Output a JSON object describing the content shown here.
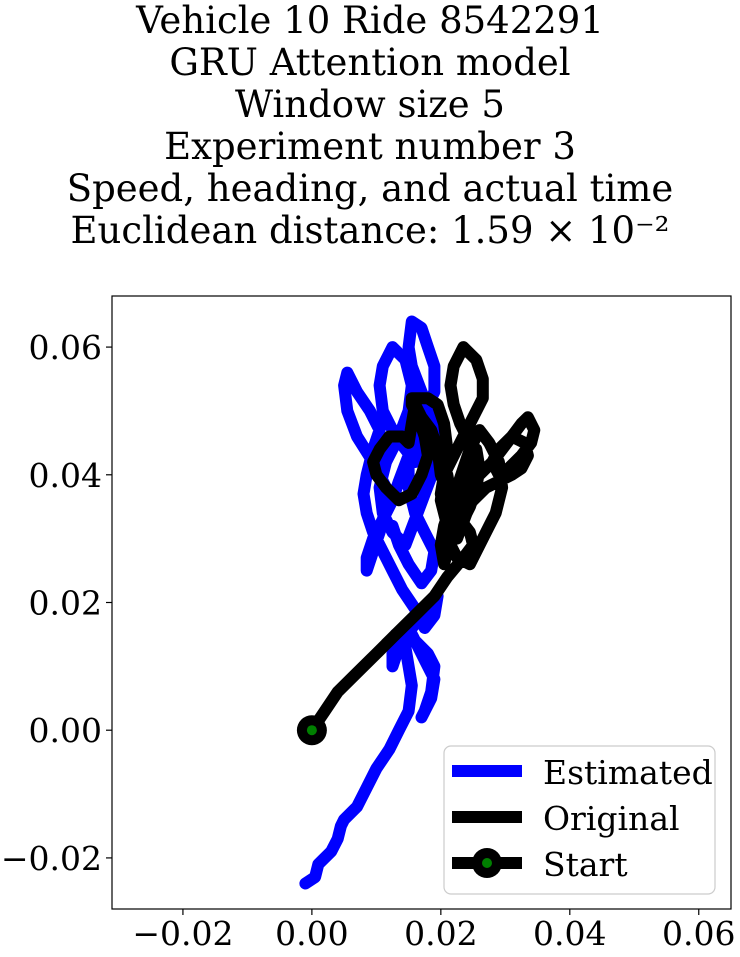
{
  "title_lines": [
    "Vehicle 10 Ride 8542291",
    "GRU Attention model",
    "Window size 5",
    "Experiment number 3",
    "Speed, heading, and actual time",
    "Euclidean distance: 1.59 × 10⁻²"
  ],
  "chart_data": {
    "type": "line",
    "title": "Vehicle 10 Ride 8542291 / GRU Attention model / Window size 5 / Experiment number 3 / Speed, heading, and actual time / Euclidean distance: 1.59 × 10⁻²",
    "xlabel": "",
    "ylabel": "",
    "xlim": [
      -0.031,
      0.065
    ],
    "ylim": [
      -0.028,
      0.068
    ],
    "xticks": [
      -0.02,
      0.0,
      0.02,
      0.04,
      0.06
    ],
    "yticks": [
      -0.02,
      0.0,
      0.02,
      0.04,
      0.06
    ],
    "xtick_labels": [
      "−0.02",
      "0.00",
      "0.02",
      "0.04",
      "0.06"
    ],
    "ytick_labels": [
      "−0.02",
      "0.00",
      "0.02",
      "0.04",
      "0.06"
    ],
    "grid": false,
    "legend_position": "bottom-right",
    "series": [
      {
        "name": "Estimated",
        "color": "#0000ff",
        "x": [
          -0.001,
          0.0005,
          0.001,
          0.003,
          0.004,
          0.0045,
          0.005,
          0.007,
          0.0085,
          0.01,
          0.012,
          0.0135,
          0.015,
          0.0155,
          0.015,
          0.0145,
          0.015,
          0.016,
          0.018,
          0.019,
          0.0185,
          0.0175,
          0.017,
          0.0185,
          0.019,
          0.0175,
          0.016,
          0.0145,
          0.013,
          0.0125,
          0.0125,
          0.0135,
          0.0155,
          0.018,
          0.0195,
          0.019,
          0.0175,
          0.016,
          0.014,
          0.0125,
          0.011,
          0.0095,
          0.0085,
          0.008,
          0.0085,
          0.0095,
          0.0105,
          0.009,
          0.007,
          0.0055,
          0.005,
          0.0055,
          0.007,
          0.0095,
          0.0115,
          0.0115,
          0.0105,
          0.0095,
          0.0085,
          0.0085,
          0.0095,
          0.011,
          0.0125,
          0.0135,
          0.015,
          0.0165,
          0.0175,
          0.019,
          0.019,
          0.018,
          0.017,
          0.0155,
          0.015,
          0.0155,
          0.017,
          0.0185,
          0.0185,
          0.016,
          0.013,
          0.011,
          0.0105,
          0.011,
          0.0125,
          0.0145,
          0.0155,
          0.015,
          0.0135,
          0.0115,
          0.0105,
          0.011,
          0.0125,
          0.0145,
          0.016,
          0.0175,
          0.019,
          0.0195,
          0.0185,
          0.0165,
          0.015,
          0.015,
          0.016,
          0.0175,
          0.019,
          0.0185,
          0.017,
          0.015,
          0.0135,
          0.0125
        ],
        "y": [
          -0.024,
          -0.023,
          -0.021,
          -0.019,
          -0.017,
          -0.015,
          -0.014,
          -0.012,
          -0.009,
          -0.006,
          -0.003,
          0.0,
          0.003,
          0.007,
          0.01,
          0.013,
          0.016,
          0.014,
          0.012,
          0.01,
          0.006,
          0.003,
          0.002,
          0.005,
          0.008,
          0.011,
          0.014,
          0.016,
          0.015,
          0.012,
          0.01,
          0.013,
          0.016,
          0.019,
          0.021,
          0.018,
          0.016,
          0.019,
          0.022,
          0.025,
          0.028,
          0.031,
          0.034,
          0.037,
          0.04,
          0.044,
          0.047,
          0.05,
          0.053,
          0.056,
          0.054,
          0.05,
          0.046,
          0.042,
          0.038,
          0.035,
          0.031,
          0.028,
          0.025,
          0.027,
          0.03,
          0.033,
          0.036,
          0.039,
          0.043,
          0.047,
          0.05,
          0.053,
          0.057,
          0.06,
          0.063,
          0.064,
          0.06,
          0.057,
          0.053,
          0.049,
          0.045,
          0.042,
          0.046,
          0.05,
          0.054,
          0.057,
          0.06,
          0.058,
          0.054,
          0.05,
          0.046,
          0.042,
          0.038,
          0.034,
          0.031,
          0.029,
          0.033,
          0.037,
          0.041,
          0.045,
          0.049,
          0.046,
          0.042,
          0.038,
          0.034,
          0.031,
          0.028,
          0.025,
          0.023,
          0.026,
          0.029,
          0.032
        ]
      },
      {
        "name": "Original",
        "color": "#000000",
        "x": [
          0.0,
          0.002,
          0.004,
          0.007,
          0.01,
          0.013,
          0.016,
          0.019,
          0.021,
          0.0235,
          0.025,
          0.0245,
          0.023,
          0.0215,
          0.02,
          0.0195,
          0.0185,
          0.017,
          0.016,
          0.0155,
          0.015,
          0.014,
          0.012,
          0.0105,
          0.0095,
          0.01,
          0.0115,
          0.0135,
          0.0155,
          0.017,
          0.018,
          0.0175,
          0.0165,
          0.0155,
          0.0155,
          0.0165,
          0.018,
          0.0195,
          0.0205,
          0.021,
          0.0205,
          0.02,
          0.021,
          0.0225,
          0.024,
          0.025,
          0.0255,
          0.0245,
          0.023,
          0.022,
          0.0215,
          0.022,
          0.0235,
          0.0255,
          0.0265,
          0.0265,
          0.025,
          0.0235,
          0.022,
          0.0205,
          0.02,
          0.0205,
          0.022,
          0.024,
          0.026,
          0.028,
          0.0295,
          0.031,
          0.0325,
          0.0335,
          0.0345,
          0.034,
          0.0325,
          0.0305,
          0.029,
          0.028,
          0.029,
          0.031,
          0.033,
          0.0335,
          0.0325,
          0.031,
          0.029,
          0.027,
          0.025,
          0.0235,
          0.022,
          0.0215,
          0.0225,
          0.0245,
          0.0265,
          0.0285,
          0.0295,
          0.029,
          0.0275,
          0.026,
          0.0245,
          0.0235,
          0.0225,
          0.0215,
          0.0205,
          0.02,
          0.0205,
          0.0215,
          0.0225,
          0.0235,
          0.0245,
          0.0255,
          0.026,
          0.0255,
          0.0245,
          0.0235,
          0.0225,
          0.0215,
          0.021
        ],
        "y": [
          0.0,
          0.003,
          0.006,
          0.009,
          0.012,
          0.015,
          0.018,
          0.021,
          0.024,
          0.027,
          0.029,
          0.031,
          0.033,
          0.036,
          0.04,
          0.044,
          0.047,
          0.049,
          0.051,
          0.048,
          0.045,
          0.046,
          0.046,
          0.044,
          0.042,
          0.04,
          0.038,
          0.036,
          0.037,
          0.04,
          0.043,
          0.046,
          0.049,
          0.051,
          0.052,
          0.052,
          0.052,
          0.051,
          0.048,
          0.044,
          0.04,
          0.036,
          0.032,
          0.03,
          0.034,
          0.038,
          0.041,
          0.045,
          0.048,
          0.051,
          0.054,
          0.057,
          0.06,
          0.058,
          0.055,
          0.052,
          0.049,
          0.046,
          0.043,
          0.04,
          0.037,
          0.034,
          0.036,
          0.038,
          0.04,
          0.042,
          0.044,
          0.046,
          0.048,
          0.049,
          0.047,
          0.045,
          0.043,
          0.041,
          0.04,
          0.042,
          0.044,
          0.046,
          0.045,
          0.043,
          0.041,
          0.04,
          0.039,
          0.038,
          0.036,
          0.034,
          0.031,
          0.029,
          0.027,
          0.026,
          0.03,
          0.034,
          0.038,
          0.042,
          0.045,
          0.047,
          0.044,
          0.041,
          0.038,
          0.035,
          0.032,
          0.029,
          0.026,
          0.03,
          0.034,
          0.038,
          0.041,
          0.044,
          0.041,
          0.038,
          0.035,
          0.033,
          0.034,
          0.037,
          0.04
        ]
      }
    ],
    "start_marker": {
      "name": "Start",
      "x": 0.0,
      "y": 0.0,
      "outer_color": "#000000",
      "inner_color": "#008000"
    }
  }
}
